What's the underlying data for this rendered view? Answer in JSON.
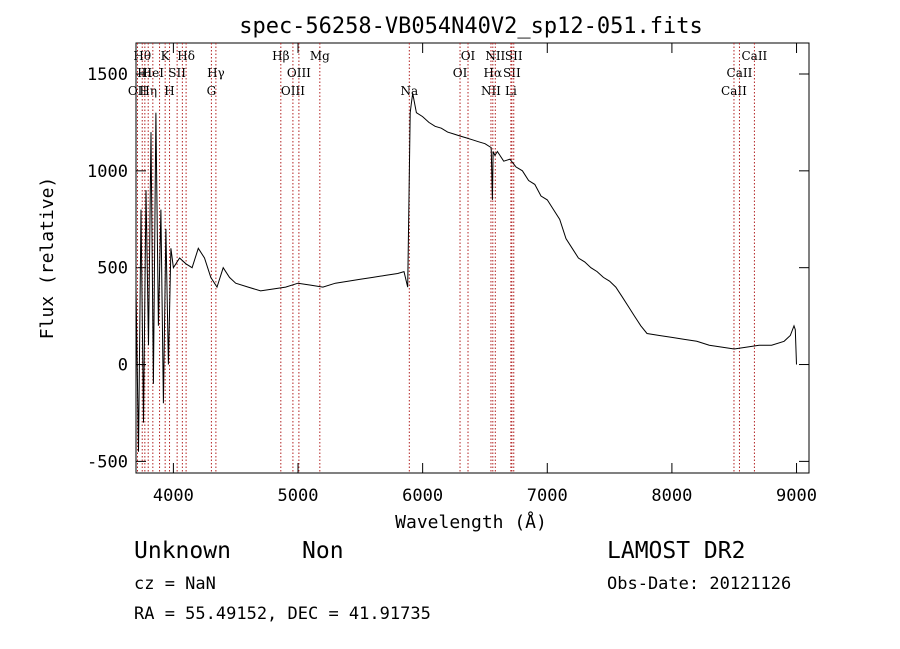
{
  "chart_data": {
    "type": "line",
    "title": "spec-56258-VB054N40V2_sp12-051.fits",
    "xlabel": "Wavelength (Å)",
    "ylabel": "Flux (relative)",
    "xlim": [
      3700,
      9100
    ],
    "ylim": [
      -560,
      1660
    ],
    "xticks": [
      4000,
      5000,
      6000,
      7000,
      8000,
      9000
    ],
    "yticks": [
      -500,
      0,
      500,
      1000,
      1500
    ],
    "series": [
      {
        "x": [
          3700,
          3720,
          3740,
          3760,
          3780,
          3800,
          3820,
          3840,
          3860,
          3880,
          3900,
          3920,
          3940,
          3960,
          3980,
          4000,
          4050,
          4100,
          4150,
          4200,
          4250,
          4300,
          4350,
          4400,
          4450,
          4500,
          4600,
          4700,
          4800,
          4900,
          5000,
          5100,
          5200,
          5300,
          5400,
          5500,
          5600,
          5700,
          5800,
          5850,
          5880,
          5900,
          5910,
          5920,
          5950,
          6000,
          6050,
          6100,
          6150,
          6200,
          6250,
          6300,
          6350,
          6400,
          6450,
          6500,
          6550,
          6560,
          6565,
          6580,
          6600,
          6650,
          6700,
          6750,
          6800,
          6850,
          6900,
          6950,
          7000,
          7050,
          7100,
          7150,
          7200,
          7250,
          7300,
          7350,
          7400,
          7450,
          7500,
          7550,
          7600,
          7650,
          7700,
          7750,
          7800,
          7900,
          8000,
          8100,
          8200,
          8300,
          8400,
          8500,
          8600,
          8700,
          8800,
          8900,
          8950,
          8980,
          8990,
          9000
        ],
        "y": [
          400,
          -450,
          800,
          -300,
          900,
          100,
          1200,
          -100,
          1300,
          200,
          800,
          -200,
          700,
          0,
          600,
          500,
          550,
          520,
          500,
          600,
          550,
          450,
          400,
          500,
          450,
          420,
          400,
          380,
          390,
          400,
          420,
          410,
          400,
          420,
          430,
          440,
          450,
          460,
          470,
          480,
          400,
          1300,
          1350,
          1400,
          1300,
          1280,
          1250,
          1230,
          1220,
          1200,
          1190,
          1180,
          1170,
          1160,
          1150,
          1140,
          1120,
          850,
          1100,
          1080,
          1100,
          1050,
          1060,
          1020,
          1000,
          950,
          930,
          870,
          850,
          800,
          750,
          650,
          600,
          550,
          530,
          500,
          480,
          450,
          430,
          400,
          350,
          300,
          250,
          200,
          160,
          150,
          140,
          130,
          120,
          100,
          90,
          80,
          90,
          100,
          100,
          120,
          150,
          200,
          180,
          0
        ]
      }
    ],
    "lines": [
      {
        "x": 3712,
        "label": "OII",
        "row": 2
      },
      {
        "x": 3750,
        "label": "Hθ",
        "row": 0
      },
      {
        "x": 3771,
        "label": "Hι",
        "row": 1
      },
      {
        "x": 3798,
        "label": "Hη",
        "row": 2
      },
      {
        "x": 3835,
        "label": "HeI",
        "row": 1
      },
      {
        "x": 3889,
        "label": "",
        "row": -1
      },
      {
        "x": 3934,
        "label": "K",
        "row": 0
      },
      {
        "x": 3969,
        "label": "H",
        "row": 2
      },
      {
        "x": 4030,
        "label": "SII",
        "row": 1
      },
      {
        "x": 4072,
        "label": "",
        "row": -1
      },
      {
        "x": 4102,
        "label": "Hδ",
        "row": 0
      },
      {
        "x": 4305,
        "label": "G",
        "row": 2
      },
      {
        "x": 4341,
        "label": "Hγ",
        "row": 1
      },
      {
        "x": 4862,
        "label": "Hβ",
        "row": 0
      },
      {
        "x": 4959,
        "label": "OIII",
        "row": 2
      },
      {
        "x": 5007,
        "label": "OIII",
        "row": 1
      },
      {
        "x": 5175,
        "label": "Mg",
        "row": 0
      },
      {
        "x": 5893,
        "label": "Na",
        "row": 2
      },
      {
        "x": 6300,
        "label": "OI",
        "row": 1
      },
      {
        "x": 6364,
        "label": "OI",
        "row": 0
      },
      {
        "x": 6548,
        "label": "NII",
        "row": 2
      },
      {
        "x": 6563,
        "label": "Hα",
        "row": 1
      },
      {
        "x": 6583,
        "label": "NII",
        "row": 0
      },
      {
        "x": 6708,
        "label": "Li",
        "row": 2
      },
      {
        "x": 6716,
        "label": "SII",
        "row": 1
      },
      {
        "x": 6731,
        "label": "SII",
        "row": 0
      },
      {
        "x": 8498,
        "label": "CaII",
        "row": 2
      },
      {
        "x": 8542,
        "label": "CaII",
        "row": 1
      },
      {
        "x": 8662,
        "label": "CaII",
        "row": 0
      }
    ],
    "axes": {
      "x_axis": "ticks on top and bottom",
      "y_axis": "ticks on left and right"
    },
    "colors": {
      "spectrum": "#000000",
      "emission_lines": "#b22222"
    }
  },
  "info": {
    "class": "Unknown",
    "subclass": "Non",
    "survey": "LAMOST DR2",
    "cz": "cz = NaN",
    "obs_date": "Obs-Date: 20121126",
    "radec": "RA =  55.49152, DEC =  41.91735"
  }
}
